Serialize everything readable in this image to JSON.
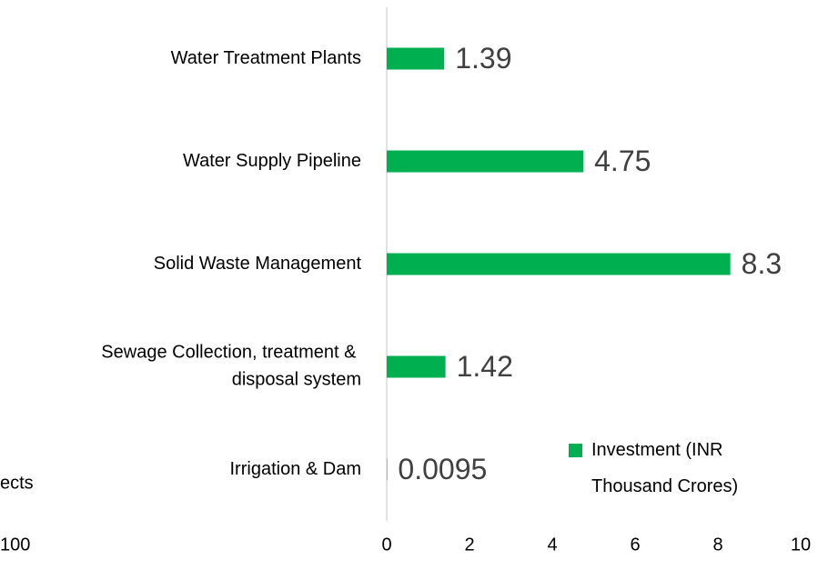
{
  "chart_data": [
    {
      "type": "fragment",
      "series": [
        {
          "name": "ects"
        }
      ],
      "xticks": [
        100
      ]
    },
    {
      "type": "hbar",
      "categories": [
        "Water Treatment Plants",
        "Water Supply Pipeline",
        "Solid Waste Management",
        "Sewage Collection, treatment & disposal system",
        "Irrigation & Dam"
      ],
      "series": [
        {
          "name": "Investment (INR Thousand Crores)",
          "color": "#00b050",
          "values": [
            1.39,
            4.75,
            8.3,
            1.42,
            0.0095
          ]
        }
      ],
      "xlim": [
        0,
        10
      ],
      "xticks": [
        0,
        2,
        4,
        6,
        8,
        10
      ],
      "legend": "right"
    }
  ]
}
